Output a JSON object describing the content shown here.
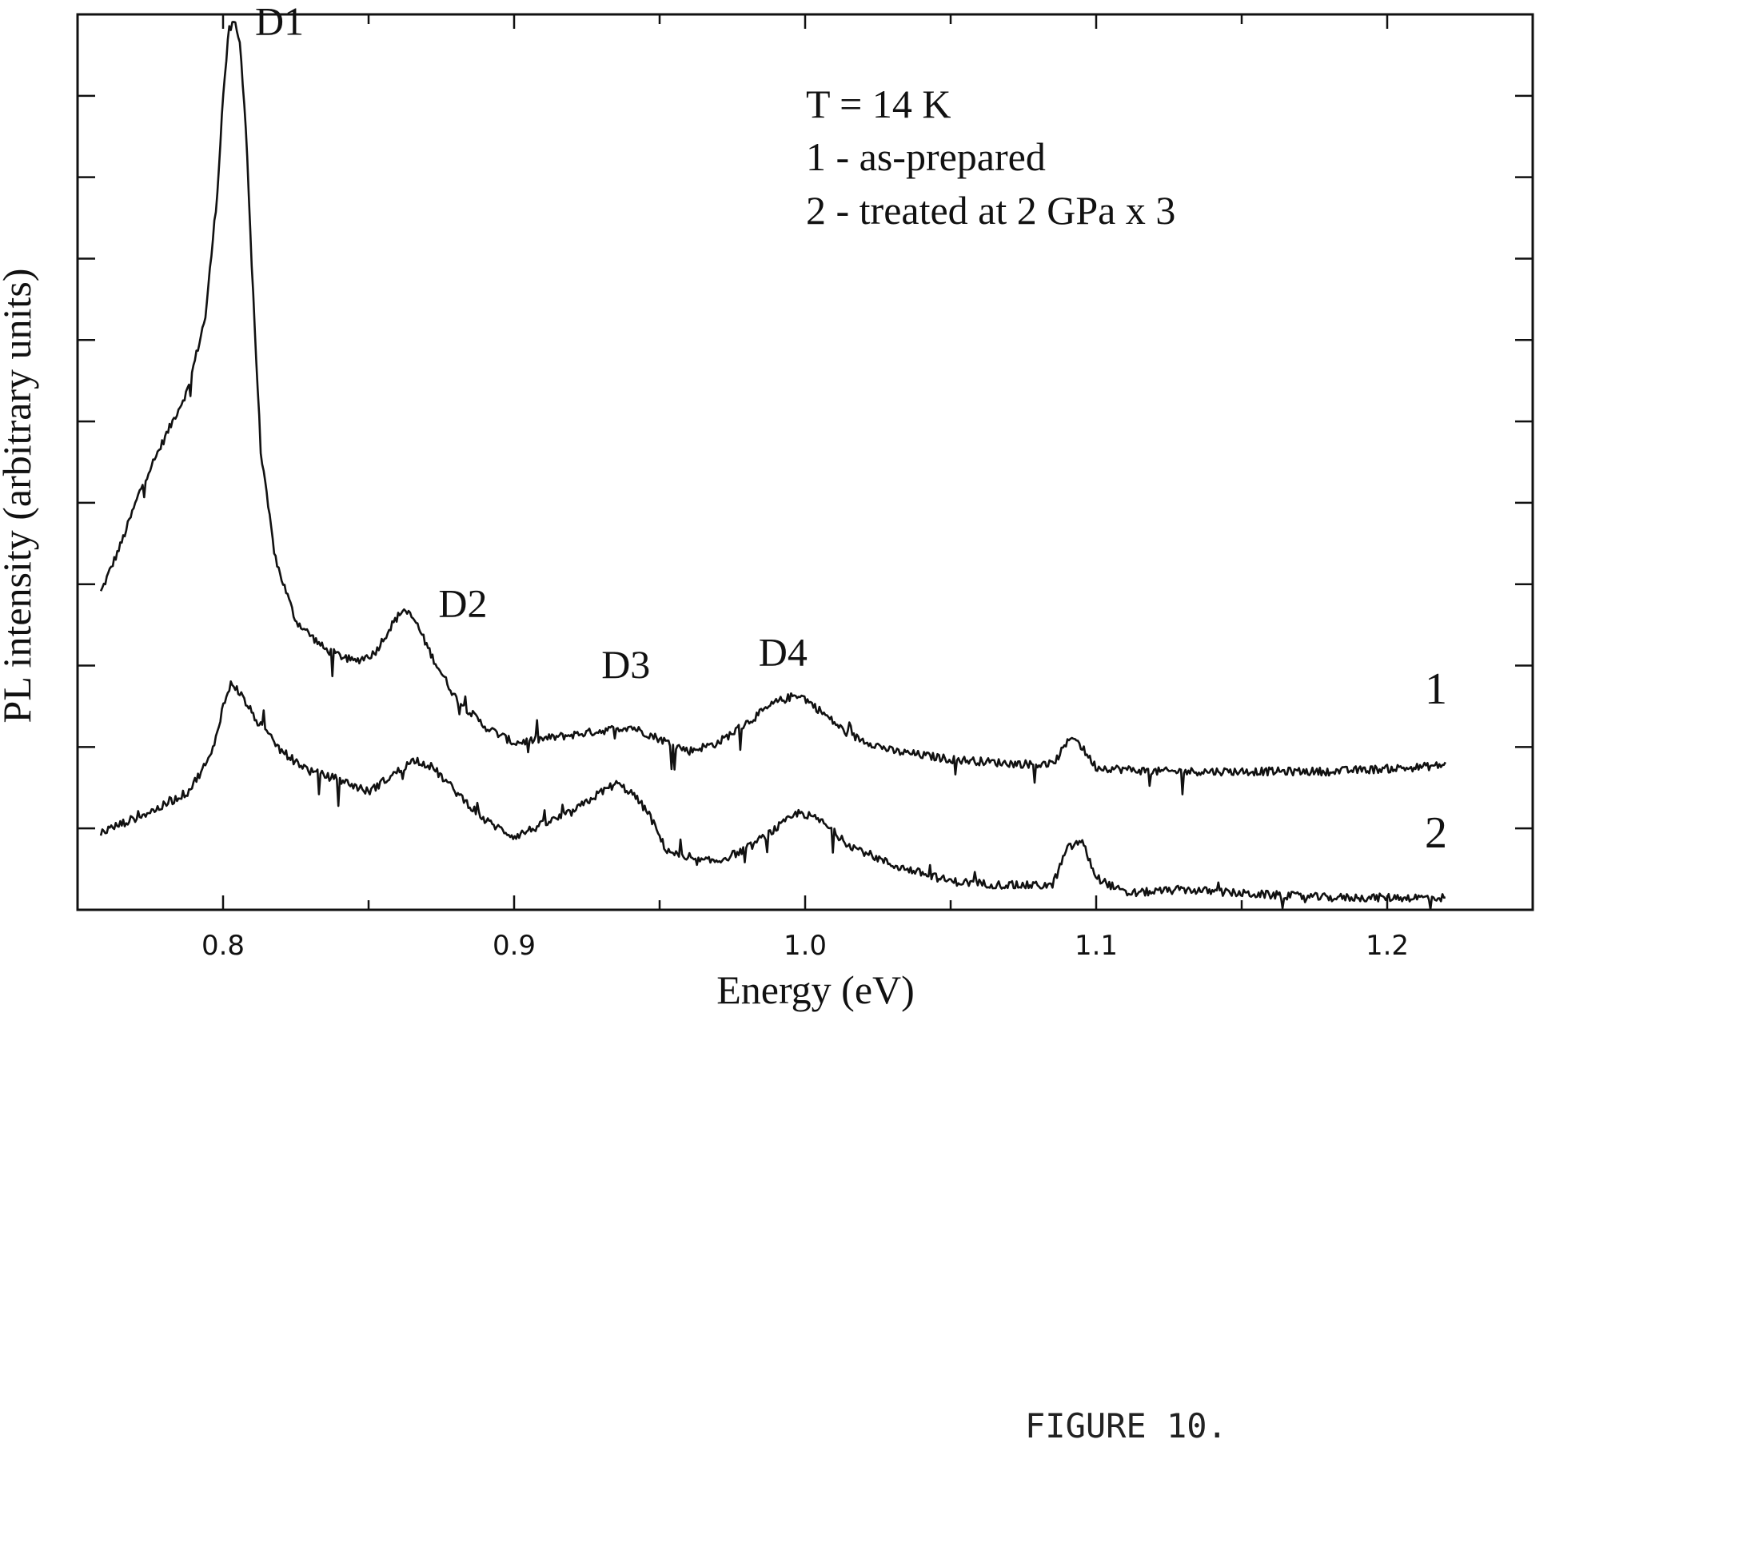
{
  "chart_data": {
    "type": "line",
    "xlabel": "Energy (eV)",
    "ylabel": "PL intensity (arbitrary units)",
    "xlim": [
      0.75,
      1.25
    ],
    "ylim": [
      0,
      11
    ],
    "xticks": [
      "0.8",
      "0.9",
      "1.0",
      "1.1",
      "1.2"
    ],
    "xtick_values": [
      0.8,
      0.9,
      1.0,
      1.1,
      1.2
    ],
    "grid": false,
    "annotations": [
      {
        "text": "T = 14 K"
      },
      {
        "text": "1 - as-prepared"
      },
      {
        "text": "2 - treated at 2 GPa x 3"
      }
    ],
    "peak_labels": [
      {
        "text": "D1",
        "x": 0.811,
        "y": 10.75
      },
      {
        "text": "D2",
        "x": 0.874,
        "y": 3.6
      },
      {
        "text": "D3",
        "x": 0.93,
        "y": 2.85
      },
      {
        "text": "D4",
        "x": 0.984,
        "y": 3.0
      }
    ],
    "series": [
      {
        "name": "1",
        "x": [
          0.758,
          0.765,
          0.772,
          0.78,
          0.788,
          0.794,
          0.798,
          0.8,
          0.802,
          0.804,
          0.806,
          0.808,
          0.81,
          0.813,
          0.818,
          0.825,
          0.835,
          0.845,
          0.852,
          0.858,
          0.862,
          0.866,
          0.872,
          0.88,
          0.89,
          0.9,
          0.91,
          0.92,
          0.93,
          0.94,
          0.95,
          0.96,
          0.97,
          0.98,
          0.99,
          0.998,
          1.005,
          1.015,
          1.03,
          1.05,
          1.07,
          1.085,
          1.092,
          1.1,
          1.12,
          1.15,
          1.18,
          1.21,
          1.22
        ],
        "y": [
          3.9,
          4.5,
          5.2,
          5.8,
          6.4,
          7.3,
          8.8,
          10.0,
          10.8,
          10.9,
          10.6,
          9.5,
          7.8,
          5.6,
          4.3,
          3.55,
          3.2,
          3.05,
          3.15,
          3.5,
          3.7,
          3.55,
          3.1,
          2.6,
          2.25,
          2.05,
          2.1,
          2.15,
          2.2,
          2.25,
          2.1,
          1.95,
          2.05,
          2.3,
          2.55,
          2.65,
          2.45,
          2.15,
          1.95,
          1.85,
          1.8,
          1.78,
          2.15,
          1.75,
          1.7,
          1.7,
          1.7,
          1.75,
          1.78
        ]
      },
      {
        "name": "2",
        "x": [
          0.758,
          0.768,
          0.778,
          0.788,
          0.796,
          0.8,
          0.803,
          0.806,
          0.812,
          0.82,
          0.83,
          0.84,
          0.85,
          0.858,
          0.866,
          0.872,
          0.88,
          0.89,
          0.9,
          0.91,
          0.92,
          0.93,
          0.935,
          0.94,
          0.946,
          0.952,
          0.96,
          0.97,
          0.98,
          0.99,
          0.998,
          1.005,
          1.015,
          1.03,
          1.05,
          1.07,
          1.085,
          1.09,
          1.095,
          1.1,
          1.11,
          1.13,
          1.15,
          1.18,
          1.21,
          1.22
        ],
        "y": [
          0.95,
          1.1,
          1.25,
          1.45,
          1.9,
          2.5,
          2.8,
          2.65,
          2.3,
          1.95,
          1.7,
          1.6,
          1.45,
          1.65,
          1.85,
          1.75,
          1.45,
          1.1,
          0.9,
          1.05,
          1.2,
          1.45,
          1.55,
          1.45,
          1.2,
          0.75,
          0.6,
          0.6,
          0.75,
          1.0,
          1.2,
          1.1,
          0.8,
          0.55,
          0.35,
          0.3,
          0.3,
          0.75,
          0.85,
          0.4,
          0.2,
          0.25,
          0.2,
          0.15,
          0.15,
          0.15
        ]
      }
    ]
  },
  "caption": "FIGURE 10."
}
